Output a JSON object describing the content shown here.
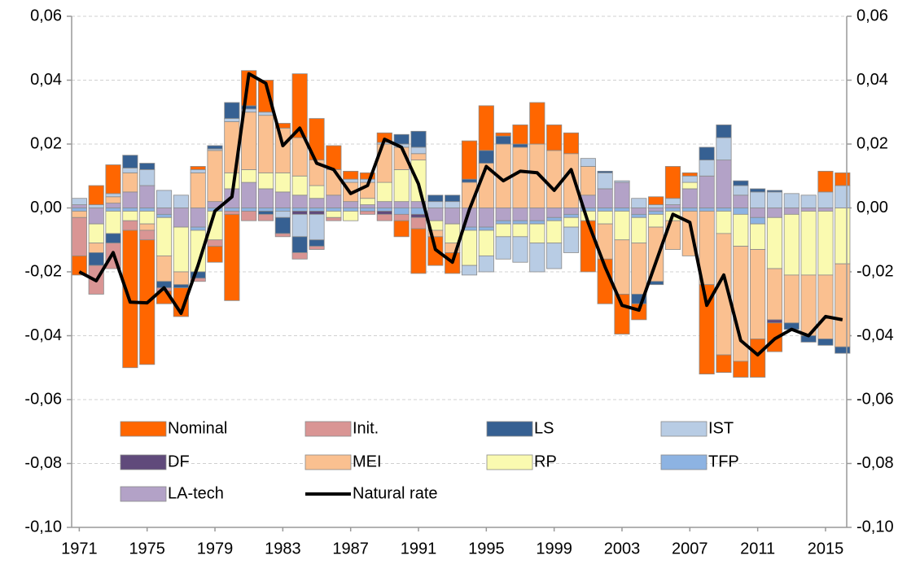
{
  "chart_data": {
    "type": "bar",
    "x": [
      1971,
      1972,
      1973,
      1974,
      1975,
      1976,
      1977,
      1978,
      1979,
      1980,
      1981,
      1982,
      1983,
      1984,
      1985,
      1986,
      1987,
      1988,
      1989,
      1990,
      1991,
      1992,
      1993,
      1994,
      1995,
      1996,
      1997,
      1998,
      1999,
      2000,
      2001,
      2002,
      2003,
      2004,
      2005,
      2006,
      2007,
      2008,
      2009,
      2010,
      2011,
      2012,
      2013,
      2014,
      2015,
      2016
    ],
    "xlim": [
      1970.55,
      2016.25
    ],
    "xticks": [
      1971,
      1975,
      1979,
      1983,
      1987,
      1991,
      1995,
      1999,
      2003,
      2007,
      2011,
      2015
    ],
    "ylim": [
      -0.1,
      0.06
    ],
    "yticks": [
      {
        "value": -0.1,
        "label": "-0,10"
      },
      {
        "value": -0.08,
        "label": "-0,08"
      },
      {
        "value": -0.06,
        "label": "-0,06"
      },
      {
        "value": -0.04,
        "label": "-0,04"
      },
      {
        "value": -0.02,
        "label": "-0,02"
      },
      {
        "value": 0,
        "label": "0,00"
      },
      {
        "value": 0.02,
        "label": "0,02"
      },
      {
        "value": 0.04,
        "label": "0,04"
      },
      {
        "value": 0.06,
        "label": "0,06"
      }
    ],
    "y2lim": [
      -0.1,
      0.06
    ],
    "y2ticks": [
      {
        "value": -0.1,
        "label": "-0,10"
      },
      {
        "value": -0.08,
        "label": "-0,08"
      },
      {
        "value": -0.06,
        "label": "-0,06"
      },
      {
        "value": -0.04,
        "label": "-0,04"
      },
      {
        "value": -0.02,
        "label": "-0,02"
      },
      {
        "value": 0,
        "label": "0,00"
      },
      {
        "value": 0.02,
        "label": "0,02"
      },
      {
        "value": 0.04,
        "label": "0,04"
      },
      {
        "value": 0.06,
        "label": "0,06"
      }
    ],
    "grid": true,
    "stacked": true,
    "series": [
      {
        "name": "Nominal",
        "color": "#ff6600",
        "values": [
          -0.006,
          0.006,
          0.009,
          -0.043,
          -0.039,
          -0.004,
          -0.009,
          0.001,
          -0.005,
          -0.027,
          0.011,
          0.01,
          0.0015,
          0.02,
          0.013,
          0.0075,
          0.0025,
          0.002,
          0.003,
          -0.005,
          -0.014,
          -0.009,
          -0.0065,
          0.012,
          0.014,
          0.001,
          0.006,
          0.013,
          0.008,
          0.0065,
          -0.016,
          -0.014,
          -0.0125,
          -0.005,
          0.0025,
          0.01,
          0.001,
          -0.028,
          -0.0055,
          -0.005,
          -0.012,
          -0.009,
          0,
          0,
          0.0065,
          0.004
        ]
      },
      {
        "name": "Init.",
        "color": "#d99594",
        "values": [
          -0.012,
          -0.009,
          -0.008,
          -0.003,
          -0.003,
          -0.001,
          0,
          -0.001,
          -0.002,
          -0.001,
          -0.003,
          -0.002,
          -0.001,
          -0.002,
          -0.001,
          -0.001,
          0,
          -0.001,
          -0.002,
          -0.002,
          -0.0035,
          0,
          0,
          0,
          0,
          0,
          0,
          0,
          0,
          0,
          0,
          0,
          0,
          0,
          0,
          0,
          0,
          0,
          0,
          0,
          0,
          0,
          0,
          0,
          0,
          0
        ]
      },
      {
        "name": "LS",
        "color": "#366092",
        "values": [
          0,
          -0.004,
          -0.003,
          0.004,
          0.002,
          -0.002,
          -0.001,
          -0.002,
          0.001,
          0.005,
          0.001,
          -0.001,
          -0.005,
          -0.005,
          -0.002,
          0,
          0,
          0,
          0,
          0.003,
          0.005,
          0.002,
          0.002,
          0.001,
          0.004,
          0.0025,
          0.001,
          0,
          0,
          0,
          0,
          0.0005,
          0,
          -0.003,
          -0.001,
          0,
          0,
          0.004,
          0.004,
          0.0015,
          0.001,
          0.0005,
          -0.002,
          -0.002,
          -0.002,
          -0.002
        ]
      },
      {
        "name": "IST",
        "color": "#b8cce4",
        "values": [
          0.002,
          0.001,
          0.001,
          0.0015,
          0.005,
          0.0055,
          0.004,
          0.001,
          0.0005,
          0.001,
          0.001,
          0.001,
          -0.002,
          -0.007,
          -0.008,
          0,
          0.001,
          0.001,
          0.0005,
          0.001,
          0.002,
          0.002,
          0.002,
          -0.003,
          -0.005,
          -0.007,
          -0.008,
          -0.009,
          -0.008,
          -0.008,
          0.0025,
          0.005,
          0.0005,
          0.003,
          0.001,
          0.002,
          0.002,
          0.005,
          0.007,
          0.003,
          0.005,
          0.005,
          0.0045,
          0.004,
          0.005,
          0.007
        ]
      },
      {
        "name": "DF",
        "color": "#604a7b",
        "values": [
          0,
          0,
          0,
          0,
          0,
          0,
          0,
          0,
          0,
          0,
          0,
          0,
          0,
          -0.001,
          -0.001,
          0,
          0,
          0,
          -0.001,
          0,
          -0.001,
          0,
          0,
          0,
          0,
          0,
          0,
          0,
          0,
          0,
          0,
          0,
          0,
          0,
          0,
          0,
          0,
          0,
          0,
          0,
          0,
          -0.001,
          0,
          0,
          0,
          0
        ]
      },
      {
        "name": "MEI",
        "color": "#fac090",
        "values": [
          -0.002,
          -0.003,
          0.002,
          0.006,
          -0.002,
          -0.008,
          -0.004,
          0.011,
          0.016,
          0.016,
          0.018,
          0.018,
          0.014,
          0.012,
          0.008,
          0.008,
          0.006,
          0.005,
          0.012,
          0.007,
          0.002,
          -0.002,
          -0.003,
          0.008,
          0.014,
          0.02,
          0.019,
          0.02,
          0.018,
          0.017,
          0.009,
          -0.011,
          -0.017,
          -0.016,
          -0.017,
          -0.009,
          -0.014,
          -0.023,
          -0.038,
          -0.036,
          -0.028,
          -0.016,
          -0.015,
          -0.019,
          -0.02,
          -0.026
        ]
      },
      {
        "name": "RP",
        "color": "#fafab0",
        "values": [
          0,
          -0.006,
          -0.007,
          -0.003,
          -0.004,
          -0.012,
          -0.014,
          -0.013,
          -0.009,
          0.005,
          0.004,
          0.005,
          0.006,
          0.006,
          0.004,
          -0.002,
          -0.003,
          0.002,
          0.006,
          0.01,
          0.013,
          -0.003,
          -0.006,
          -0.011,
          -0.008,
          -0.004,
          -0.004,
          -0.006,
          -0.007,
          -0.003,
          -0.003,
          -0.004,
          -0.009,
          -0.008,
          -0.004,
          -0.003,
          0.002,
          0,
          -0.007,
          -0.01,
          -0.008,
          -0.016,
          -0.019,
          -0.02,
          -0.02,
          -0.0175
        ]
      },
      {
        "name": "TFP",
        "color": "#8db3e2",
        "values": [
          -0.001,
          0,
          -0.001,
          -0.001,
          -0.001,
          -0.001,
          0,
          -0.001,
          -0.001,
          -0.001,
          -0.001,
          -0.001,
          -0.001,
          -0.001,
          -0.001,
          -0.001,
          -0.001,
          -0.001,
          -0.001,
          -0.002,
          -0.002,
          0,
          0,
          -0.001,
          -0.001,
          -0.001,
          -0.001,
          -0.001,
          -0.001,
          -0.001,
          -0.001,
          -0.001,
          -0.001,
          -0.001,
          -0.001,
          -0.001,
          -0.001,
          -0.001,
          -0.001,
          -0.002,
          -0.002,
          0,
          0,
          0,
          0,
          0
        ]
      },
      {
        "name": "LA-tech",
        "color": "#b3a2c7",
        "values": [
          0.001,
          -0.005,
          0.0015,
          0.005,
          0.007,
          -0.002,
          -0.006,
          -0.006,
          0.002,
          0.006,
          0.008,
          0.006,
          0.005,
          0.004,
          0.003,
          0.004,
          0.002,
          0.001,
          0.002,
          0.002,
          0.002,
          -0.004,
          -0.005,
          -0.006,
          -0.006,
          -0.004,
          -0.004,
          -0.004,
          -0.003,
          -0.002,
          0.004,
          0.006,
          0.008,
          -0.002,
          -0.001,
          0.001,
          0.006,
          0.01,
          0.015,
          0.004,
          -0.003,
          -0.003,
          -0.002,
          -0.001,
          -0.001,
          0
        ]
      },
      {
        "name": "Natural rate",
        "color": "#000000",
        "type": "line",
        "values": [
          -0.02,
          -0.0228,
          -0.014,
          -0.0295,
          -0.0297,
          -0.025,
          -0.033,
          -0.018,
          -0.001,
          0.0035,
          0.042,
          0.039,
          0.0195,
          0.025,
          0.014,
          0.012,
          0.0045,
          0.007,
          0.0215,
          0.019,
          0.0075,
          -0.013,
          -0.017,
          -0.0005,
          0.013,
          0.0085,
          0.0115,
          0.011,
          0.0055,
          0.012,
          -0.0045,
          -0.0185,
          -0.0305,
          -0.032,
          -0.017,
          -0.002,
          -0.0045,
          -0.0305,
          -0.021,
          -0.0415,
          -0.046,
          -0.041,
          -0.038,
          -0.04,
          -0.034,
          -0.035
        ]
      }
    ]
  }
}
